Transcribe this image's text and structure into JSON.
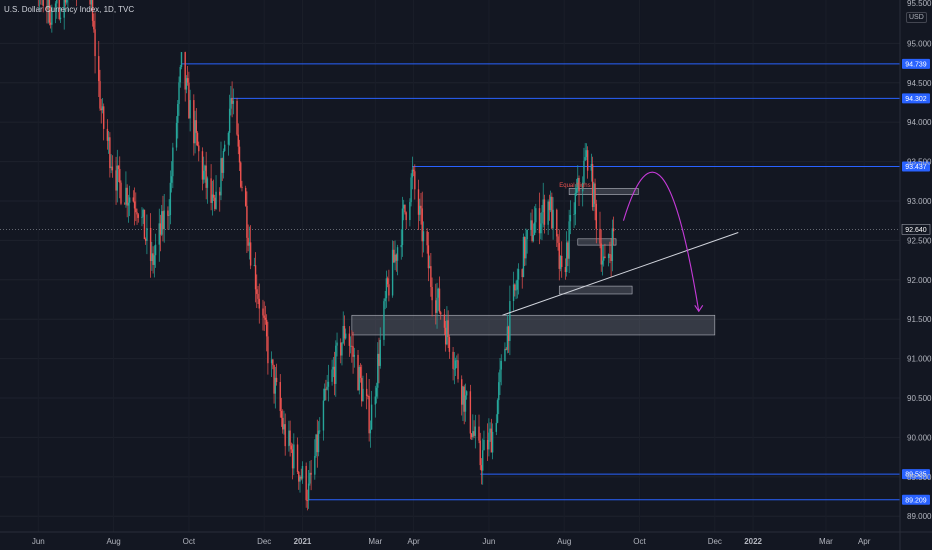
{
  "header": {
    "symbol_title": "U.S. Dollar Currency Index, 1D, TVC",
    "currency": "USD"
  },
  "colors": {
    "background": "#131722",
    "up_candle": "#26a69a",
    "down_candle": "#ef5350",
    "level_line": "#2962ff",
    "badge": "#2962ff",
    "price_line": "#9598a1",
    "trendline": "#d1d4dc",
    "arrow": "#c53ad8",
    "zone_fill": "rgba(120,123,134,0.35)",
    "annotation": "#ef5350"
  },
  "chart_data": {
    "type": "candlestick",
    "title": "U.S. Dollar Currency Index, 1D, TVC",
    "y_axis": {
      "range": [
        88.8,
        95.55
      ],
      "ticks": [
        "95.000",
        "94.500",
        "94.000",
        "93.500",
        "93.000",
        "92.500",
        "92.000",
        "91.500",
        "91.000",
        "90.500",
        "90.000",
        "89.500",
        "89.000"
      ],
      "top_label": "95.500"
    },
    "x_axis": {
      "ticks": [
        "Jun",
        "Aug",
        "Oct",
        "Dec",
        "2021",
        "Mar",
        "Apr",
        "Jun",
        "Aug",
        "Oct",
        "Dec",
        "2022",
        "Mar",
        "Apr"
      ],
      "bold_ticks": [
        "2021",
        "2022"
      ]
    },
    "date_range": [
      "2020-05-01",
      "2022-04-30"
    ],
    "key_points": [
      {
        "date": "2020-05-01",
        "price": 96.5
      },
      {
        "date": "2020-06-12",
        "price": 95.4
      },
      {
        "date": "2020-07-10",
        "price": 96.0
      },
      {
        "date": "2020-07-23",
        "price": 94.0
      },
      {
        "date": "2020-08-05",
        "price": 93.2
      },
      {
        "date": "2020-08-20",
        "price": 93.0
      },
      {
        "date": "2020-09-01",
        "price": 92.2
      },
      {
        "date": "2020-09-15",
        "price": 93.0
      },
      {
        "date": "2020-09-25",
        "price": 94.7
      },
      {
        "date": "2020-10-10",
        "price": 93.5
      },
      {
        "date": "2020-10-22",
        "price": 92.8
      },
      {
        "date": "2020-11-04",
        "price": 94.3
      },
      {
        "date": "2020-11-20",
        "price": 92.4
      },
      {
        "date": "2020-12-05",
        "price": 91.0
      },
      {
        "date": "2020-12-18",
        "price": 90.0
      },
      {
        "date": "2021-01-06",
        "price": 89.3
      },
      {
        "date": "2021-01-20",
        "price": 90.5
      },
      {
        "date": "2021-02-05",
        "price": 91.4
      },
      {
        "date": "2021-02-25",
        "price": 90.2
      },
      {
        "date": "2021-03-10",
        "price": 91.8
      },
      {
        "date": "2021-03-31",
        "price": 93.3
      },
      {
        "date": "2021-04-15",
        "price": 92.0
      },
      {
        "date": "2021-05-01",
        "price": 91.2
      },
      {
        "date": "2021-05-25",
        "price": 89.7
      },
      {
        "date": "2021-06-05",
        "price": 90.1
      },
      {
        "date": "2021-06-15",
        "price": 91.3
      },
      {
        "date": "2021-06-30",
        "price": 92.4
      },
      {
        "date": "2021-07-08",
        "price": 92.7
      },
      {
        "date": "2021-07-20",
        "price": 93.0
      },
      {
        "date": "2021-07-30",
        "price": 92.0
      },
      {
        "date": "2021-08-10",
        "price": 93.0
      },
      {
        "date": "2021-08-20",
        "price": 93.6
      },
      {
        "date": "2021-08-26",
        "price": 92.9
      },
      {
        "date": "2021-09-03",
        "price": 92.1
      },
      {
        "date": "2021-09-10",
        "price": 92.6
      }
    ],
    "levels": [
      {
        "price": 94.739,
        "label": "94.739",
        "from": "2020-09-25"
      },
      {
        "price": 94.302,
        "label": "94.302",
        "from": "2020-11-04"
      },
      {
        "price": 93.437,
        "label": "93.437",
        "from": "2021-03-31"
      },
      {
        "price": 89.535,
        "label": "89.535",
        "from": "2021-05-25"
      },
      {
        "price": 89.209,
        "label": "89.209",
        "from": "2021-01-06"
      }
    ],
    "current_price": {
      "price": 92.64,
      "label": "92.640"
    },
    "zones": [
      {
        "from": "2021-02-10",
        "to": "2021-12-01",
        "low": 91.3,
        "high": 91.55
      },
      {
        "from": "2021-07-28",
        "to": "2021-09-25",
        "low": 91.82,
        "high": 91.92
      },
      {
        "from": "2021-08-05",
        "to": "2021-09-30",
        "low": 93.08,
        "high": 93.16
      },
      {
        "from": "2021-08-12",
        "to": "2021-09-12",
        "low": 92.44,
        "high": 92.52
      }
    ],
    "trendline": {
      "from": {
        "date": "2021-06-12",
        "price": 91.55
      },
      "to": {
        "date": "2021-12-20",
        "price": 92.6
      }
    },
    "annotation": {
      "text": "Equal highs",
      "date": "2021-07-28",
      "price": 93.18
    },
    "projection_arrow": {
      "start": {
        "date": "2021-09-18",
        "price": 92.75
      },
      "control": {
        "date": "2021-10-20",
        "price": 93.9
      },
      "end": {
        "date": "2021-11-18",
        "price": 91.6
      }
    }
  }
}
